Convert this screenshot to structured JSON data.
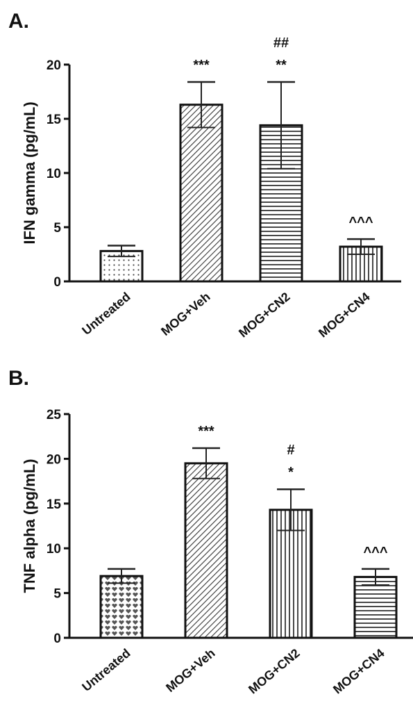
{
  "chart_data": [
    {
      "type": "bar",
      "panel_label": "A.",
      "ylabel": "IFN gamma (pg/mL)",
      "ylim": [
        0,
        20
      ],
      "yticks": [
        0,
        5,
        10,
        15,
        20
      ],
      "categories": [
        "Untreated",
        "MOG+Veh",
        "MOG+CN2",
        "MOG+CN4"
      ],
      "values": [
        2.8,
        16.3,
        14.4,
        3.2
      ],
      "errors": [
        0.5,
        2.1,
        4.0,
        0.7
      ],
      "patterns": [
        "dots",
        "diagonal",
        "horizontal",
        "vertical"
      ],
      "annotations": [
        {
          "category": "MOG+Veh",
          "lines": [
            "***"
          ]
        },
        {
          "category": "MOG+CN2",
          "lines": [
            "##",
            "**"
          ]
        },
        {
          "category": "MOG+CN4",
          "lines": [
            "^^^"
          ]
        }
      ]
    },
    {
      "type": "bar",
      "panel_label": "B.",
      "ylabel": "TNF alpha (pg/mL)",
      "ylim": [
        0,
        25
      ],
      "yticks": [
        0,
        5,
        10,
        15,
        20,
        25
      ],
      "categories": [
        "Untreated",
        "MOG+Veh",
        "MOG+CN2",
        "MOG+CN4"
      ],
      "values": [
        6.9,
        19.5,
        14.3,
        6.8
      ],
      "errors": [
        0.8,
        1.7,
        2.3,
        0.9
      ],
      "patterns": [
        "hearts",
        "diagonal",
        "vertical",
        "horizontal"
      ],
      "annotations": [
        {
          "category": "MOG+Veh",
          "lines": [
            "***"
          ]
        },
        {
          "category": "MOG+CN2",
          "lines": [
            "#",
            "*"
          ]
        },
        {
          "category": "MOG+CN4",
          "lines": [
            "^^^"
          ]
        }
      ]
    }
  ]
}
